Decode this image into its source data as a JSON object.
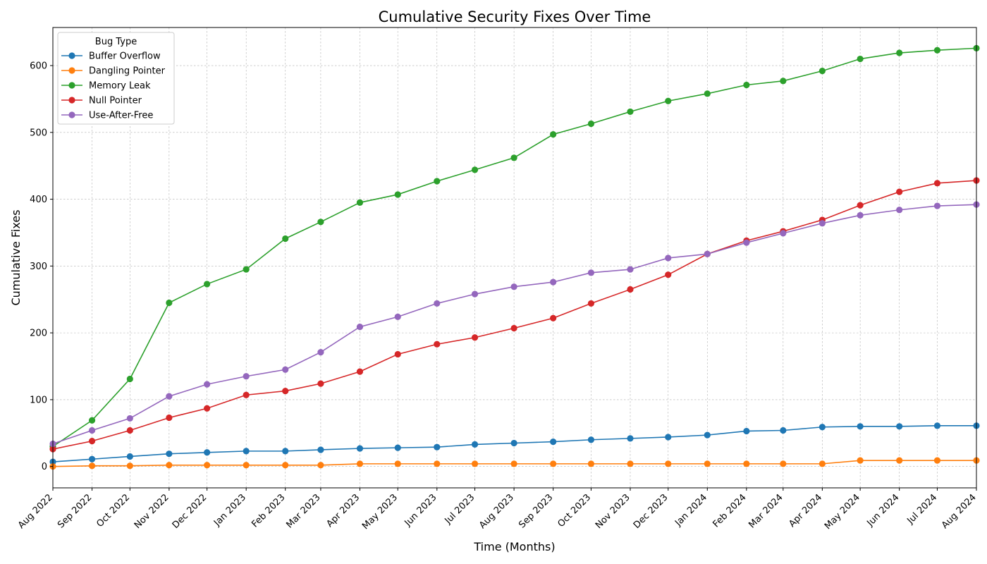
{
  "chart_data": {
    "type": "line",
    "title": "Cumulative Security Fixes Over Time",
    "xlabel": "Time (Months)",
    "ylabel": "Cumulative Fixes",
    "x": [
      "Aug 2022",
      "Sep 2022",
      "Oct 2022",
      "Nov 2022",
      "Dec 2022",
      "Jan 2023",
      "Feb 2023",
      "Mar 2023",
      "Apr 2023",
      "May 2023",
      "Jun 2023",
      "Jul 2023",
      "Aug 2023",
      "Sep 2023",
      "Oct 2023",
      "Nov 2023",
      "Dec 2023",
      "Jan 2024",
      "Feb 2024",
      "Mar 2024",
      "Apr 2024",
      "May 2024",
      "Jun 2024",
      "Jul 2024",
      "Aug 2024"
    ],
    "x_dates": [
      "2022-08-01",
      "2022-09-01",
      "2022-10-01",
      "2022-11-01",
      "2022-12-01",
      "2023-01-01",
      "2023-02-01",
      "2023-03-01",
      "2023-04-01",
      "2023-05-01",
      "2023-06-01",
      "2023-07-01",
      "2023-08-01",
      "2023-09-01",
      "2023-10-01",
      "2023-11-01",
      "2023-12-01",
      "2024-01-01",
      "2024-02-01",
      "2024-03-01",
      "2024-04-01",
      "2024-05-01",
      "2024-06-01",
      "2024-07-01",
      "2024-08-01"
    ],
    "ylim": [
      -32,
      657
    ],
    "yticks": [
      0,
      100,
      200,
      300,
      400,
      500,
      600
    ],
    "grid": true,
    "legend": {
      "title": "Bug Type",
      "placement": "top-left"
    },
    "series": [
      {
        "name": "Buffer Overflow",
        "color": "#1f77b4",
        "values": [
          7,
          11,
          15,
          19,
          21,
          23,
          23,
          25,
          27,
          28,
          29,
          33,
          35,
          37,
          40,
          42,
          44,
          47,
          53,
          54,
          59,
          60,
          60,
          61,
          61
        ]
      },
      {
        "name": "Dangling Pointer",
        "color": "#ff7f0e",
        "values": [
          0,
          1,
          1,
          2,
          2,
          2,
          2,
          2,
          4,
          4,
          4,
          4,
          4,
          4,
          4,
          4,
          4,
          4,
          4,
          4,
          4,
          9,
          9,
          9,
          9
        ]
      },
      {
        "name": "Memory Leak",
        "color": "#2ca02c",
        "values": [
          30,
          69,
          131,
          245,
          273,
          295,
          341,
          366,
          395,
          407,
          427,
          444,
          462,
          497,
          513,
          531,
          547,
          558,
          571,
          577,
          592,
          610,
          619,
          623,
          626
        ]
      },
      {
        "name": "Null Pointer",
        "color": "#d62728",
        "values": [
          26,
          38,
          54,
          73,
          87,
          107,
          113,
          124,
          142,
          168,
          183,
          193,
          207,
          222,
          244,
          265,
          287,
          318,
          338,
          352,
          369,
          391,
          411,
          424,
          428
        ]
      },
      {
        "name": "Use-After-Free",
        "color": "#9467bd",
        "values": [
          34,
          54,
          72,
          105,
          123,
          135,
          145,
          171,
          209,
          224,
          244,
          258,
          269,
          276,
          290,
          295,
          312,
          318,
          335,
          349,
          364,
          376,
          384,
          390,
          392
        ]
      }
    ]
  }
}
